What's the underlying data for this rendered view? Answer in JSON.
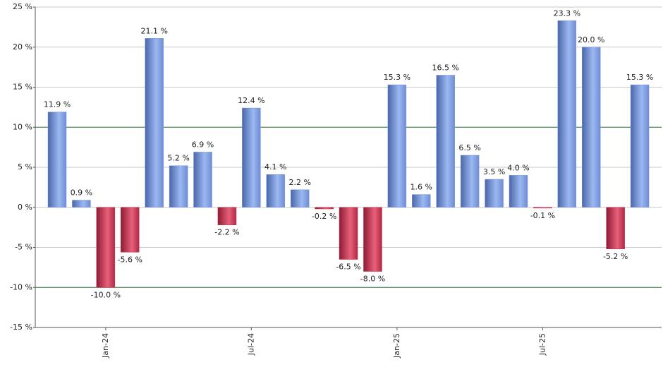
{
  "chart_data": {
    "type": "bar",
    "categories": [
      null,
      null,
      "Jan-24",
      null,
      null,
      null,
      null,
      null,
      "Jul-24",
      null,
      null,
      null,
      null,
      null,
      "Jan-25",
      null,
      null,
      null,
      null,
      null,
      "Jul-25",
      null,
      null,
      null,
      null
    ],
    "values": [
      11.9,
      0.9,
      -10.0,
      -5.6,
      21.1,
      5.2,
      6.9,
      -2.2,
      12.4,
      4.1,
      2.2,
      -0.2,
      -6.5,
      -8.0,
      15.3,
      1.6,
      16.5,
      6.5,
      3.5,
      4.0,
      -0.1,
      23.3,
      20.0,
      -5.2,
      15.3
    ],
    "value_labels": [
      "11.9 %",
      "0.9 %",
      "-10.0 %",
      "-5.6 %",
      "21.1 %",
      "5.2 %",
      "6.9 %",
      "-2.2 %",
      "12.4 %",
      "4.1 %",
      "2.2 %",
      "-0.2 %",
      "-6.5 %",
      "-8.0 %",
      "15.3 %",
      "1.6 %",
      "16.5 %",
      "6.5 %",
      "3.5 %",
      "4.0 %",
      "-0.1 %",
      "23.3 %",
      "20.0 %",
      "-5.2 %",
      "15.3 %"
    ],
    "positive_color": "#7b9be0",
    "negative_color": "#c8334f",
    "ylim": [
      -15,
      25
    ],
    "yticks": [
      {
        "value": -15,
        "label": "-15 %"
      },
      {
        "value": -10,
        "label": "-10 %"
      },
      {
        "value": -5,
        "label": "-5 %"
      },
      {
        "value": 0,
        "label": "0 %"
      },
      {
        "value": 5,
        "label": "5 %"
      },
      {
        "value": 10,
        "label": "10 %"
      },
      {
        "value": 15,
        "label": "15 %"
      },
      {
        "value": 20,
        "label": "20 %"
      },
      {
        "value": 25,
        "label": "25 %"
      }
    ],
    "grid": true,
    "reference_lines": [
      10,
      -10
    ],
    "reference_color": "#2e7d32"
  }
}
